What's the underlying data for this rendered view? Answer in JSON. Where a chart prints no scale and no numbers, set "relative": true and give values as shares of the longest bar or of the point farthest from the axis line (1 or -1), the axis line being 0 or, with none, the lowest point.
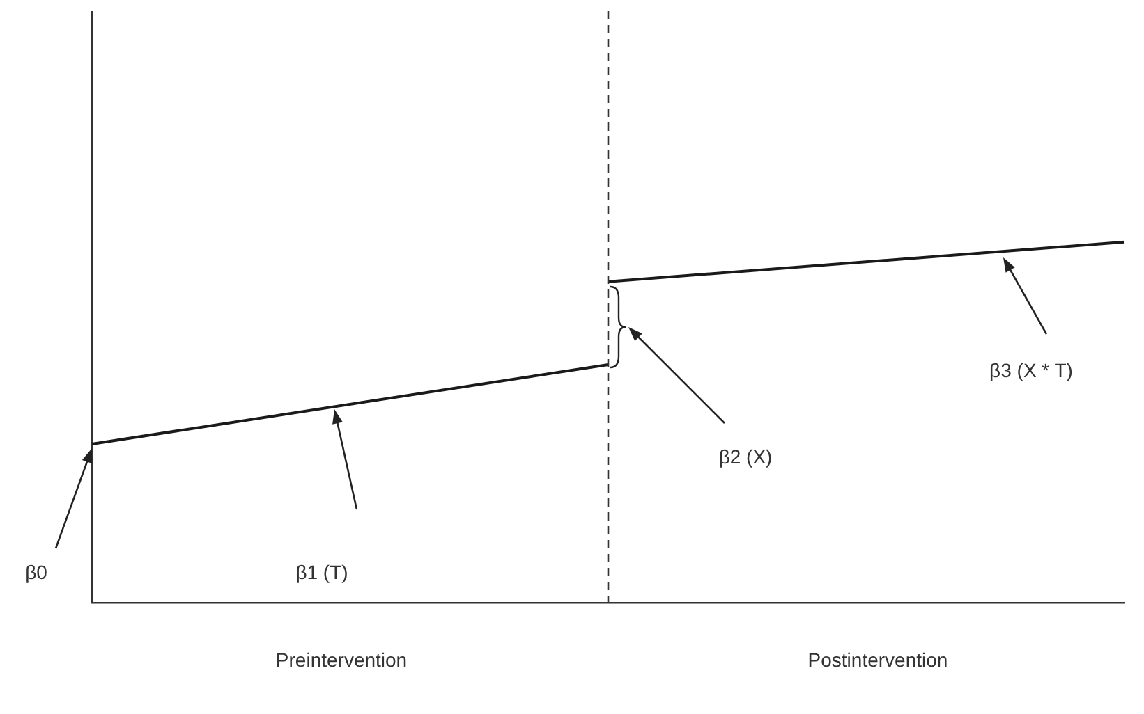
{
  "chart_data": {
    "type": "line",
    "relative": true,
    "categories": [
      null,
      null,
      null
    ],
    "series": [
      {
        "color": "#1a1a1a",
        "values": [
          0.44,
          0.66,
          null
        ]
      },
      {
        "color": "#1a1a1a",
        "values": [
          null,
          0.89,
          1
        ]
      }
    ],
    "grid": false,
    "legend": false,
    "marker": "none",
    "line_style": "solid",
    "annotations": [
      "β0",
      "β1 (T)",
      "β2 (X)",
      "β3 (X * T)",
      "Preintervention",
      "Postintervention"
    ]
  }
}
